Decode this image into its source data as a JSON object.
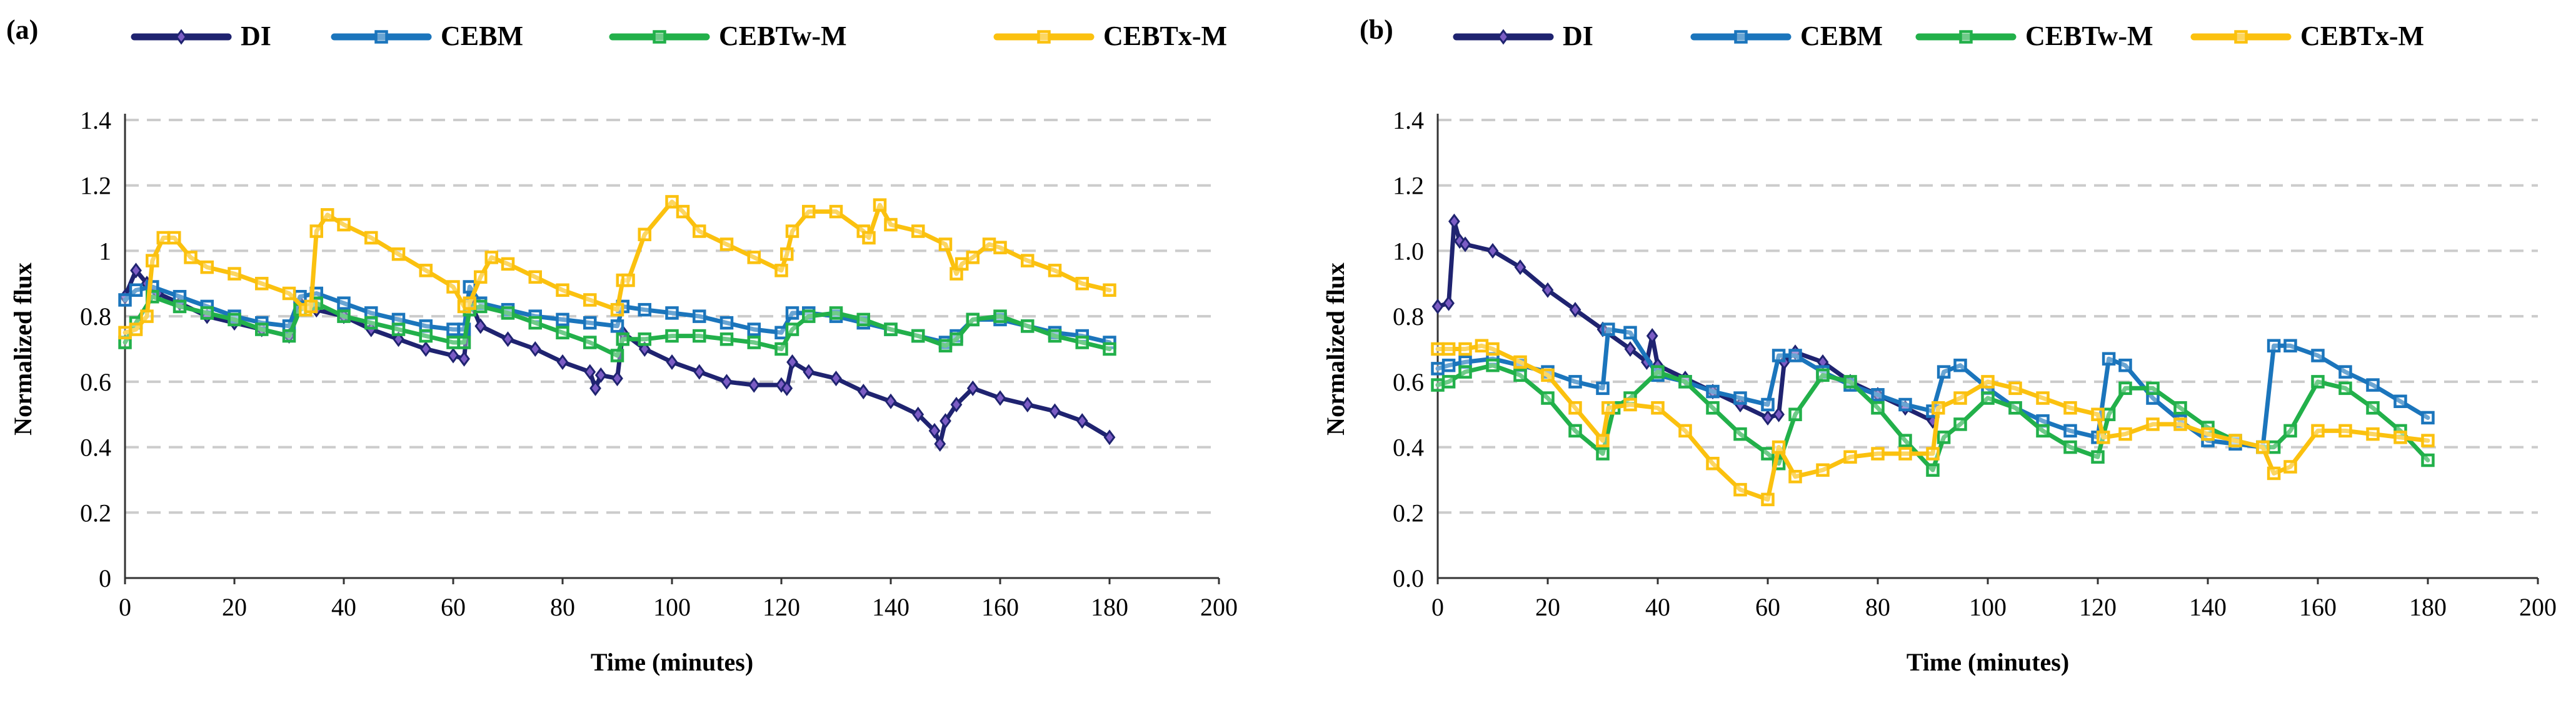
{
  "chart_data": [
    {
      "type": "line",
      "panel_label": "(a)",
      "xlabel": "Time (minutes)",
      "ylabel": "Normalized flux",
      "xlim": [
        0,
        200
      ],
      "ylim": [
        0,
        1.4
      ],
      "xticks": [
        0,
        20,
        40,
        60,
        80,
        100,
        120,
        140,
        160,
        180,
        200
      ],
      "yticks": [
        0,
        0.2,
        0.4,
        0.6,
        0.8,
        1,
        1.2,
        1.4
      ],
      "ytick_labels": [
        "0",
        "0.2",
        "0.4",
        "0.6",
        "0.8",
        "1",
        "1.2",
        "1.4"
      ],
      "grid": "horizontal dashed",
      "legend_position": "top",
      "series": [
        {
          "name": "DI",
          "color": "#1f2370",
          "marker": "diamond",
          "x": [
            0,
            2,
            4,
            6,
            10,
            15,
            20,
            25,
            30,
            32,
            35,
            40,
            45,
            50,
            55,
            60,
            62,
            63,
            65,
            70,
            75,
            80,
            85,
            86,
            87,
            90,
            91,
            95,
            100,
            105,
            110,
            115,
            120,
            121,
            122,
            125,
            130,
            135,
            140,
            145,
            148,
            149,
            150,
            152,
            155,
            160,
            165,
            170,
            175,
            180
          ],
          "y": [
            0.86,
            0.94,
            0.9,
            0.87,
            0.84,
            0.8,
            0.78,
            0.76,
            0.74,
            0.84,
            0.82,
            0.8,
            0.76,
            0.73,
            0.7,
            0.68,
            0.67,
            0.85,
            0.77,
            0.73,
            0.7,
            0.66,
            0.63,
            0.58,
            0.62,
            0.61,
            0.75,
            0.7,
            0.66,
            0.63,
            0.6,
            0.59,
            0.59,
            0.58,
            0.66,
            0.63,
            0.61,
            0.57,
            0.54,
            0.5,
            0.45,
            0.41,
            0.48,
            0.53,
            0.58,
            0.55,
            0.53,
            0.51,
            0.48,
            0.43
          ]
        },
        {
          "name": "CEBM",
          "color": "#1b75bc",
          "marker": "square",
          "x": [
            0,
            2,
            5,
            10,
            15,
            20,
            25,
            30,
            32,
            35,
            40,
            45,
            50,
            55,
            60,
            62,
            63,
            65,
            70,
            75,
            80,
            85,
            90,
            91,
            95,
            100,
            105,
            110,
            115,
            120,
            122,
            125,
            130,
            135,
            140,
            145,
            150,
            152,
            155,
            160,
            165,
            170,
            175,
            180
          ],
          "y": [
            0.85,
            0.88,
            0.89,
            0.86,
            0.83,
            0.8,
            0.78,
            0.77,
            0.86,
            0.87,
            0.84,
            0.81,
            0.79,
            0.77,
            0.76,
            0.76,
            0.89,
            0.84,
            0.82,
            0.8,
            0.79,
            0.78,
            0.77,
            0.83,
            0.82,
            0.81,
            0.8,
            0.78,
            0.76,
            0.75,
            0.81,
            0.81,
            0.8,
            0.78,
            0.76,
            0.74,
            0.72,
            0.74,
            0.79,
            0.79,
            0.77,
            0.75,
            0.74,
            0.72
          ]
        },
        {
          "name": "CEBTw-M",
          "color": "#22b04a",
          "marker": "square",
          "x": [
            0,
            2,
            5,
            10,
            15,
            20,
            25,
            30,
            32,
            35,
            40,
            45,
            50,
            55,
            60,
            62,
            63,
            65,
            70,
            75,
            80,
            85,
            90,
            91,
            95,
            100,
            105,
            110,
            115,
            120,
            122,
            125,
            130,
            135,
            140,
            145,
            150,
            152,
            155,
            160,
            165,
            170,
            175,
            180
          ],
          "y": [
            0.72,
            0.78,
            0.86,
            0.83,
            0.81,
            0.79,
            0.76,
            0.74,
            0.82,
            0.84,
            0.8,
            0.78,
            0.76,
            0.74,
            0.72,
            0.72,
            0.82,
            0.83,
            0.81,
            0.78,
            0.75,
            0.72,
            0.68,
            0.73,
            0.73,
            0.74,
            0.74,
            0.73,
            0.72,
            0.7,
            0.76,
            0.8,
            0.81,
            0.79,
            0.76,
            0.74,
            0.71,
            0.73,
            0.79,
            0.8,
            0.77,
            0.74,
            0.72,
            0.7
          ]
        },
        {
          "name": "CEBTx-M",
          "color": "#fbc10f",
          "marker": "square",
          "x": [
            0,
            2,
            4,
            5,
            7,
            9,
            12,
            15,
            20,
            25,
            30,
            33,
            34,
            35,
            37,
            40,
            45,
            50,
            55,
            60,
            62,
            63,
            65,
            67,
            70,
            75,
            80,
            85,
            90,
            91,
            92,
            95,
            100,
            102,
            105,
            110,
            115,
            120,
            121,
            122,
            125,
            130,
            135,
            136,
            138,
            140,
            145,
            150,
            152,
            153,
            155,
            158,
            160,
            165,
            170,
            175,
            180
          ],
          "y": [
            0.75,
            0.76,
            0.8,
            0.97,
            1.04,
            1.04,
            0.98,
            0.95,
            0.93,
            0.9,
            0.87,
            0.82,
            0.83,
            1.06,
            1.11,
            1.08,
            1.04,
            0.99,
            0.94,
            0.89,
            0.83,
            0.84,
            0.92,
            0.98,
            0.96,
            0.92,
            0.88,
            0.85,
            0.82,
            0.91,
            0.91,
            1.05,
            1.15,
            1.12,
            1.06,
            1.02,
            0.98,
            0.94,
            0.99,
            1.06,
            1.12,
            1.12,
            1.06,
            1.04,
            1.14,
            1.08,
            1.06,
            1.02,
            0.93,
            0.96,
            0.98,
            1.02,
            1.01,
            0.97,
            0.94,
            0.9,
            0.88
          ]
        }
      ]
    },
    {
      "type": "line",
      "panel_label": "(b)",
      "xlabel": "Time (minutes)",
      "ylabel": "Normalized flux",
      "xlim": [
        0,
        200
      ],
      "ylim": [
        0,
        1.4
      ],
      "xticks": [
        0,
        20,
        40,
        60,
        80,
        100,
        120,
        140,
        160,
        180,
        200
      ],
      "yticks": [
        0,
        0.2,
        0.4,
        0.6,
        0.8,
        1,
        1.2,
        1.4
      ],
      "ytick_labels": [
        "0.0",
        "0.2",
        "0.4",
        "0.6",
        "0.8",
        "1.0",
        "1.2",
        "1.4"
      ],
      "grid": "horizontal dashed",
      "legend_position": "top",
      "series": [
        {
          "name": "DI",
          "color": "#1f2370",
          "marker": "diamond",
          "x": [
            0,
            2,
            3,
            4,
            5,
            10,
            15,
            20,
            25,
            30,
            35,
            38,
            39,
            40,
            45,
            50,
            55,
            60,
            62,
            63,
            65,
            70,
            75,
            80,
            85,
            90
          ],
          "y": [
            0.83,
            0.84,
            1.09,
            1.03,
            1.02,
            1.0,
            0.95,
            0.88,
            0.82,
            0.76,
            0.7,
            0.66,
            0.74,
            0.65,
            0.61,
            0.57,
            0.53,
            0.49,
            0.5,
            0.66,
            0.69,
            0.66,
            0.6,
            0.56,
            0.52,
            0.48
          ]
        },
        {
          "name": "CEBM",
          "color": "#1b75bc",
          "marker": "square",
          "x": [
            0,
            2,
            5,
            10,
            15,
            20,
            25,
            30,
            31,
            35,
            40,
            45,
            50,
            55,
            60,
            62,
            65,
            70,
            75,
            80,
            85,
            90,
            92,
            95,
            100,
            105,
            110,
            115,
            120,
            122,
            125,
            130,
            135,
            140,
            145,
            150,
            152,
            155,
            160,
            165,
            170,
            175,
            180
          ],
          "y": [
            0.64,
            0.65,
            0.66,
            0.67,
            0.65,
            0.63,
            0.6,
            0.58,
            0.76,
            0.75,
            0.62,
            0.6,
            0.57,
            0.55,
            0.53,
            0.68,
            0.68,
            0.63,
            0.59,
            0.56,
            0.53,
            0.51,
            0.63,
            0.65,
            0.58,
            0.52,
            0.48,
            0.45,
            0.43,
            0.67,
            0.65,
            0.55,
            0.48,
            0.42,
            0.41,
            0.4,
            0.71,
            0.71,
            0.68,
            0.63,
            0.59,
            0.54,
            0.49
          ]
        },
        {
          "name": "CEBTw-M",
          "color": "#22b04a",
          "marker": "square",
          "x": [
            0,
            2,
            5,
            10,
            15,
            20,
            25,
            30,
            32,
            35,
            40,
            45,
            50,
            55,
            60,
            62,
            65,
            70,
            75,
            80,
            85,
            90,
            92,
            95,
            100,
            105,
            110,
            115,
            120,
            122,
            125,
            130,
            135,
            140,
            145,
            150,
            152,
            155,
            160,
            165,
            170,
            175,
            180
          ],
          "y": [
            0.59,
            0.6,
            0.63,
            0.65,
            0.62,
            0.55,
            0.45,
            0.38,
            0.52,
            0.55,
            0.63,
            0.6,
            0.52,
            0.44,
            0.38,
            0.35,
            0.5,
            0.62,
            0.6,
            0.52,
            0.42,
            0.33,
            0.43,
            0.47,
            0.55,
            0.52,
            0.45,
            0.4,
            0.37,
            0.5,
            0.58,
            0.58,
            0.52,
            0.46,
            0.42,
            0.4,
            0.4,
            0.45,
            0.6,
            0.58,
            0.52,
            0.45,
            0.36
          ]
        },
        {
          "name": "CEBTx-M",
          "color": "#fbc10f",
          "marker": "square",
          "x": [
            0,
            2,
            5,
            8,
            10,
            15,
            20,
            25,
            30,
            31,
            35,
            40,
            45,
            50,
            55,
            60,
            62,
            65,
            70,
            75,
            80,
            85,
            90,
            91,
            95,
            100,
            105,
            110,
            115,
            120,
            121,
            125,
            130,
            135,
            140,
            145,
            150,
            152,
            155,
            160,
            165,
            170,
            175,
            180
          ],
          "y": [
            0.7,
            0.7,
            0.7,
            0.71,
            0.7,
            0.66,
            0.62,
            0.52,
            0.42,
            0.52,
            0.53,
            0.52,
            0.45,
            0.35,
            0.27,
            0.24,
            0.4,
            0.31,
            0.33,
            0.37,
            0.38,
            0.38,
            0.38,
            0.52,
            0.55,
            0.6,
            0.58,
            0.55,
            0.52,
            0.5,
            0.43,
            0.44,
            0.47,
            0.47,
            0.44,
            0.42,
            0.4,
            0.32,
            0.34,
            0.45,
            0.45,
            0.44,
            0.43,
            0.42
          ]
        }
      ]
    }
  ]
}
